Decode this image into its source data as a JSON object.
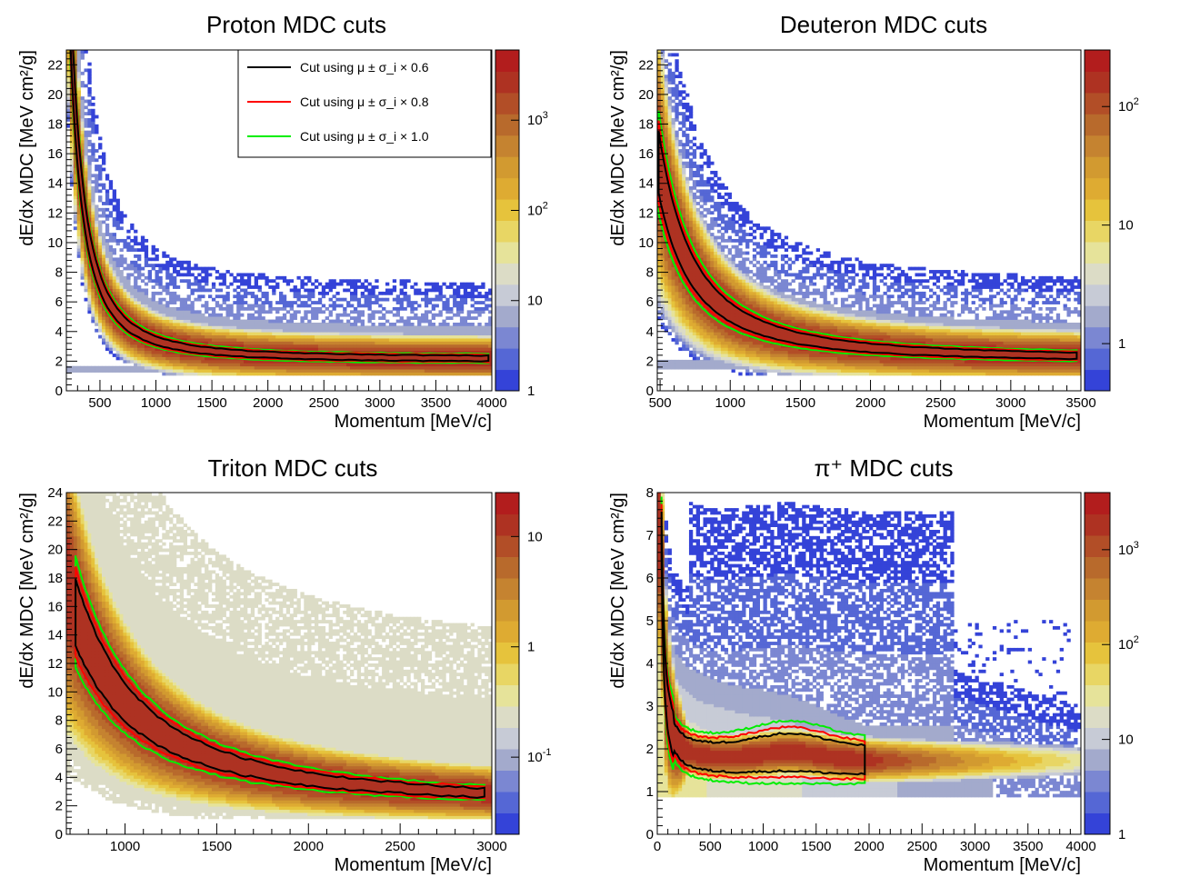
{
  "chart_data": [
    {
      "type": "heatmap",
      "title": "Proton MDC cuts",
      "xlabel": "Momentum [MeV/c]",
      "ylabel": "dE/dx MDC [MeV cm²/g]",
      "xlim": [
        200,
        4000
      ],
      "ylim": [
        0,
        23
      ],
      "xticks": [
        500,
        1000,
        1500,
        2000,
        2500,
        3000,
        3500,
        4000
      ],
      "yticks": [
        0,
        2,
        4,
        6,
        8,
        10,
        12,
        14,
        16,
        18,
        20,
        22
      ],
      "zscale": "log",
      "zlim": [
        1,
        6000
      ],
      "zticks": [
        "1",
        "10",
        "10^2",
        "10^3"
      ],
      "kind": "proton",
      "p0": 200,
      "pmax": 3970,
      "A": 1300000.0,
      "min": 2.1,
      "band": 1.45,
      "s": 0.5,
      "legend": {
        "position": "top-right",
        "entries": [
          {
            "label": "Cut using μ ± σ_i × 0.6",
            "color": "#000000"
          },
          {
            "label": "Cut using μ ± σ_i × 0.8",
            "color": "#ff0000"
          },
          {
            "label": "Cut using μ ± σ_i × 1.0",
            "color": "#00ee00"
          }
        ]
      }
    },
    {
      "type": "heatmap",
      "title": "Deuteron MDC cuts",
      "xlabel": "Momentum [MeV/c]",
      "ylabel": "dE/dx MDC [MeV cm²/g]",
      "xlim": [
        480,
        3500
      ],
      "ylim": [
        0,
        23
      ],
      "xticks": [
        500,
        1000,
        1500,
        2000,
        2500,
        3000,
        3500
      ],
      "yticks": [
        0,
        2,
        4,
        6,
        8,
        10,
        12,
        14,
        16,
        18,
        20,
        22
      ],
      "zscale": "log",
      "zlim": [
        0.4,
        300
      ],
      "zticks": [
        "1",
        "10",
        "10^2"
      ],
      "kind": "deuteron",
      "p0": 490,
      "pmax": 3470,
      "A": 3200000.0,
      "min": 2.1,
      "band": 1.45,
      "s": 0.9
    },
    {
      "type": "heatmap",
      "title": "Triton MDC cuts",
      "xlabel": "Momentum [MeV/c]",
      "ylabel": "dE/dx MDC [MeV cm²/g]",
      "xlim": [
        680,
        3000
      ],
      "ylim": [
        0,
        24
      ],
      "xticks": [
        1000,
        1500,
        2000,
        2500,
        3000
      ],
      "yticks": [
        0,
        2,
        4,
        6,
        8,
        10,
        12,
        14,
        16,
        18,
        20,
        22,
        24
      ],
      "zscale": "log",
      "zlim": [
        0.02,
        25
      ],
      "zticks": [
        "10^-1",
        "1",
        "10"
      ],
      "kind": "triton",
      "p0": 730,
      "pmax": 2960,
      "A": 7200000.0,
      "min": 2.1,
      "band": 1.55,
      "s": 1.0
    },
    {
      "type": "heatmap",
      "title": "π⁺ MDC cuts",
      "xlabel": "Momentum [MeV/c]",
      "ylabel": "dE/dx MDC [MeV cm²/g]",
      "xlim": [
        0,
        4000
      ],
      "ylim": [
        0,
        8
      ],
      "xticks": [
        0,
        500,
        1000,
        1500,
        2000,
        2500,
        3000,
        3500,
        4000
      ],
      "yticks": [
        0,
        1,
        2,
        3,
        4,
        5,
        6,
        7,
        8
      ],
      "zscale": "log",
      "zlim": [
        1,
        4000
      ],
      "zticks": [
        "1",
        "10",
        "10^2",
        "10^3"
      ],
      "kind": "pion",
      "p0": 40,
      "pmax": 1960,
      "band": 1.45
    }
  ]
}
